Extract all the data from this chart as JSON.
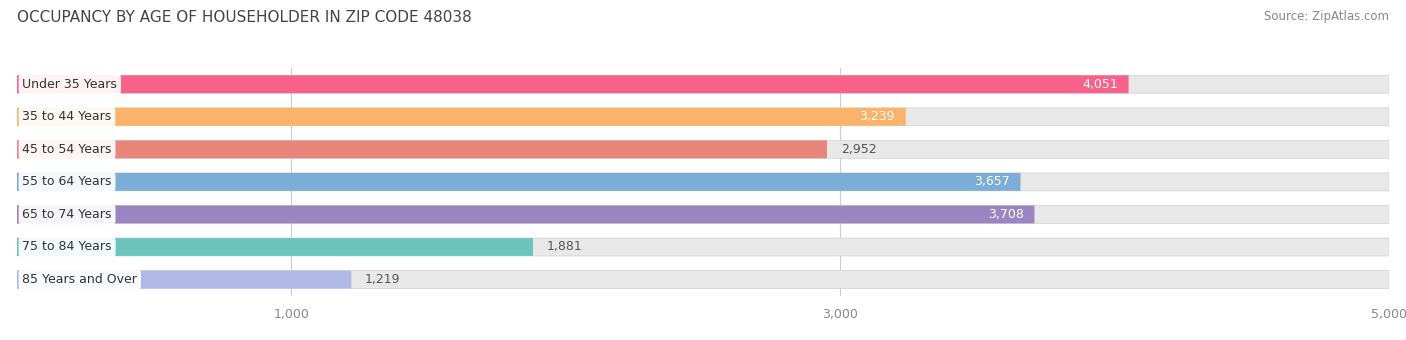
{
  "title": "OCCUPANCY BY AGE OF HOUSEHOLDER IN ZIP CODE 48038",
  "source": "Source: ZipAtlas.com",
  "categories": [
    "Under 35 Years",
    "35 to 44 Years",
    "45 to 54 Years",
    "55 to 64 Years",
    "65 to 74 Years",
    "75 to 84 Years",
    "85 Years and Over"
  ],
  "values": [
    4051,
    3239,
    2952,
    3657,
    3708,
    1881,
    1219
  ],
  "bar_colors": [
    "#F7618A",
    "#F9B36A",
    "#E8857A",
    "#7BADD6",
    "#9B85C0",
    "#6DC4BE",
    "#B0B8E8"
  ],
  "bar_bg_color": "#E8E8E8",
  "bar_border_color": "#D0D0D0",
  "xlim": [
    0,
    5000
  ],
  "xticks": [
    1000,
    3000,
    5000
  ],
  "value_inside_threshold": 3200,
  "title_fontsize": 11,
  "source_fontsize": 8.5,
  "label_fontsize": 9,
  "value_fontsize": 9,
  "tick_fontsize": 9,
  "bg_color": "#ffffff",
  "grid_color": "#cccccc",
  "text_color": "#555555",
  "title_color": "#444444"
}
